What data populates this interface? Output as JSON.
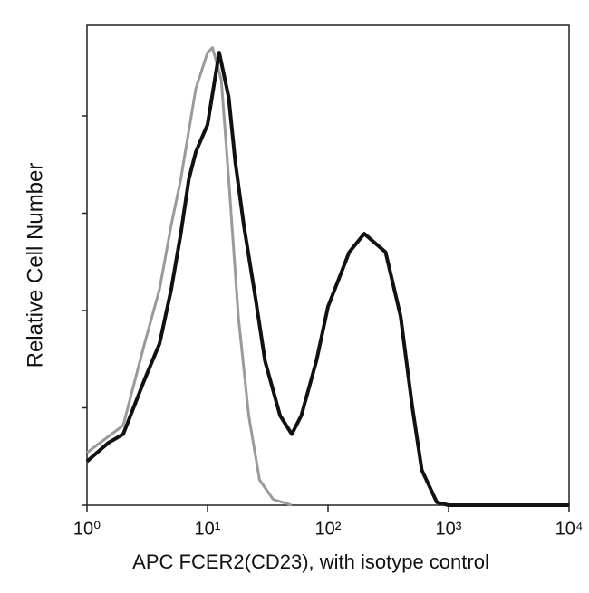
{
  "chart_data": {
    "type": "line",
    "x_label": "APC FCER2(CD23), with isotype control",
    "y_label": "Relative Cell Number",
    "xscale": "log",
    "xlim": [
      1,
      10000
    ],
    "xticks": [
      {
        "value": 1,
        "label": "10⁰"
      },
      {
        "value": 10,
        "label": "10¹"
      },
      {
        "value": 100,
        "label": "10²"
      },
      {
        "value": 1000,
        "label": "10³"
      },
      {
        "value": 10000,
        "label": "10⁴"
      }
    ],
    "ylim": [
      0,
      4.93
    ],
    "yticks": [
      0,
      1,
      2,
      3,
      4
    ],
    "series": [
      {
        "name": "CD23",
        "color": "#111111",
        "x": [
          1,
          1.5,
          2,
          3,
          4,
          5,
          6,
          7,
          8,
          10,
          12.5,
          15,
          17,
          20,
          25,
          30,
          40,
          50,
          60,
          80,
          100,
          150,
          200,
          300,
          400,
          500,
          600,
          800,
          1000,
          10000
        ],
        "values": [
          0.45,
          0.64,
          0.73,
          1.29,
          1.66,
          2.22,
          2.79,
          3.35,
          3.63,
          3.91,
          4.65,
          4.19,
          3.53,
          2.88,
          2.13,
          1.48,
          0.92,
          0.73,
          0.92,
          1.48,
          2.04,
          2.6,
          2.79,
          2.6,
          1.94,
          1.01,
          0.36,
          0.03,
          0,
          0
        ]
      },
      {
        "name": "isotype control",
        "color": "#9a9a9a",
        "x": [
          1,
          2,
          3,
          4,
          5,
          6,
          8,
          10,
          11,
          13,
          15,
          18,
          22,
          27,
          35,
          50
        ],
        "values": [
          0.54,
          0.82,
          1.66,
          2.22,
          2.88,
          3.35,
          4.28,
          4.65,
          4.7,
          4.37,
          3.35,
          1.94,
          0.92,
          0.26,
          0.06,
          0
        ]
      }
    ]
  }
}
